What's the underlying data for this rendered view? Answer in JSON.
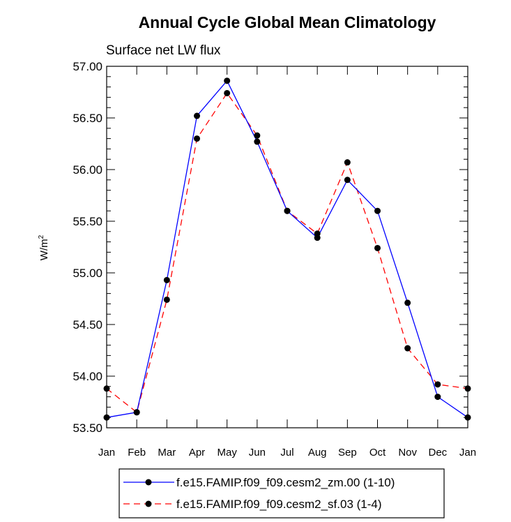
{
  "chart_data": {
    "type": "line",
    "title": "Annual Cycle Global Mean Climatology",
    "subtitle": "Surface net LW flux",
    "ylabel": "W/m",
    "ylabel_sup": "2",
    "xlabel": "",
    "categories": [
      "Jan",
      "Feb",
      "Mar",
      "Apr",
      "May",
      "Jun",
      "Jul",
      "Aug",
      "Sep",
      "Oct",
      "Nov",
      "Dec",
      "Jan"
    ],
    "ylim": [
      53.5,
      57.0
    ],
    "yticks": [
      "53.50",
      "54.00",
      "54.50",
      "55.00",
      "55.50",
      "56.00",
      "56.50",
      "57.00"
    ],
    "grid": false,
    "legend_position": "bottom",
    "series": [
      {
        "name": "f.e15.FAMIP.f09_f09.cesm2_zm.00 (1-10)",
        "color": "#0000ff",
        "dash": "solid",
        "values": [
          53.6,
          53.65,
          54.93,
          56.52,
          56.86,
          56.27,
          55.6,
          55.34,
          55.9,
          55.6,
          54.71,
          53.8,
          53.6
        ]
      },
      {
        "name": "f.e15.FAMIP.f09_f09.cesm2_sf.03 (1-4)",
        "color": "#ff0000",
        "dash": "dashed",
        "values": [
          53.88,
          53.65,
          54.74,
          56.3,
          56.74,
          56.33,
          55.6,
          55.38,
          56.07,
          55.24,
          54.27,
          53.92,
          53.88
        ]
      }
    ]
  }
}
